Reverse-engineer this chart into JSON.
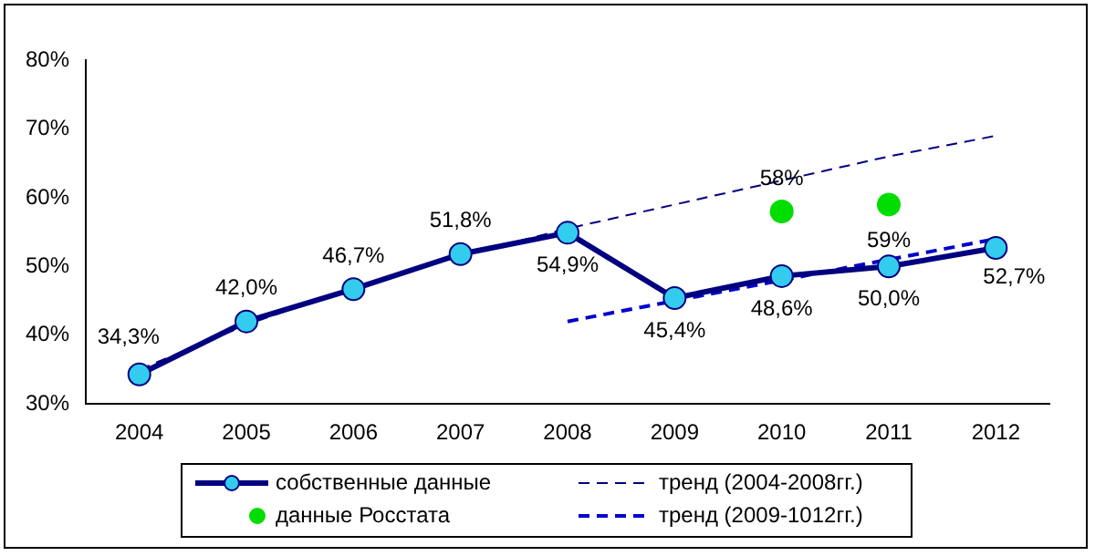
{
  "chart_data": {
    "type": "line",
    "categories": [
      "2004",
      "2005",
      "2006",
      "2007",
      "2008",
      "2009",
      "2010",
      "2011",
      "2012"
    ],
    "ylim": [
      30,
      80
    ],
    "yticks": [
      {
        "value": 30,
        "label": "30%"
      },
      {
        "value": 40,
        "label": "40%"
      },
      {
        "value": 50,
        "label": "50%"
      },
      {
        "value": 60,
        "label": "60%"
      },
      {
        "value": 70,
        "label": "70%"
      },
      {
        "value": 80,
        "label": "80%"
      }
    ],
    "grid": false,
    "legend": "bottom",
    "series": [
      {
        "name": "собственные данные",
        "color": "#000080",
        "marker": "circle",
        "line_style": "solid",
        "values": [
          34.3,
          42.0,
          46.7,
          51.8,
          54.9,
          45.4,
          48.6,
          50.0,
          52.7
        ],
        "value_labels": [
          "34,3%",
          "42,0%",
          "46,7%",
          "51,8%",
          "54,9%",
          "45,4%",
          "48,6%",
          "50,0%",
          "52,7%"
        ]
      },
      {
        "name": "данные Росстата",
        "type": "scatter",
        "color": "#00dd00",
        "marker": "circle",
        "values": [
          null,
          null,
          null,
          null,
          null,
          null,
          58,
          59,
          null
        ],
        "value_labels": [
          null,
          null,
          null,
          null,
          null,
          null,
          "58%",
          "59%",
          null
        ]
      },
      {
        "name": "тренд (2004-2008гг.)",
        "color": "#000080",
        "marker": "none",
        "line_style": "dashed",
        "values": [
          35,
          41.5,
          47,
          51.5,
          55.5,
          59,
          62.5,
          66,
          69
        ]
      },
      {
        "name": "тренд (2009-1012гг.)",
        "color": "#0000cc",
        "marker": "none",
        "line_style": "dashed",
        "values": [
          null,
          null,
          null,
          null,
          42,
          45,
          48,
          51,
          54
        ]
      }
    ]
  }
}
